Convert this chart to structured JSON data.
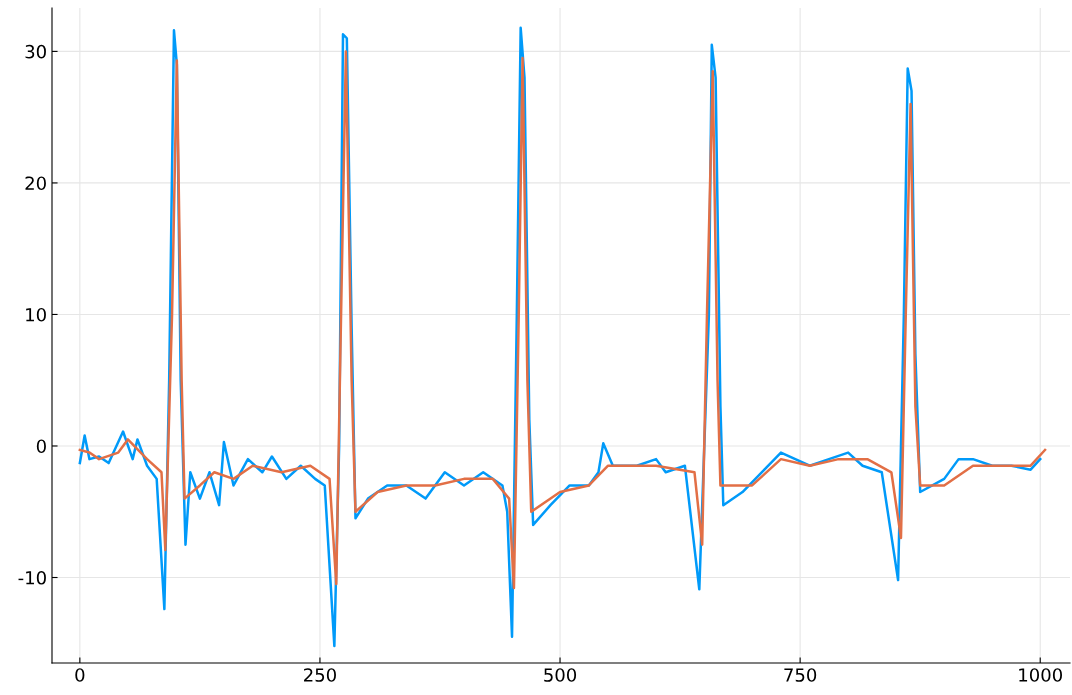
{
  "chart_data": {
    "type": "line",
    "xlim": [
      -29,
      1031
    ],
    "ylim": [
      -16.5,
      33.3
    ],
    "xticks": [
      0,
      250,
      500,
      750,
      1000
    ],
    "yticks": [
      -10,
      0,
      10,
      20,
      30
    ],
    "grid": true,
    "legend": false,
    "marker": "none",
    "line_style": "solid",
    "series": [
      {
        "color": "#009af9",
        "x": [
          0,
          5,
          10,
          20,
          30,
          45,
          55,
          60,
          70,
          80,
          88,
          93,
          98,
          101,
          105,
          110,
          115,
          125,
          135,
          145,
          150,
          160,
          175,
          190,
          200,
          215,
          230,
          245,
          255,
          265,
          270,
          274,
          278,
          283,
          287,
          300,
          320,
          340,
          360,
          380,
          400,
          420,
          440,
          445,
          450,
          455,
          459,
          463,
          468,
          472,
          490,
          510,
          530,
          540,
          545,
          555,
          580,
          600,
          610,
          630,
          645,
          655,
          658,
          662,
          667,
          670,
          690,
          710,
          730,
          760,
          780,
          800,
          815,
          835,
          852,
          858,
          862,
          866,
          870,
          875,
          900,
          915,
          930,
          950,
          970,
          990,
          1000
        ],
        "values": [
          -1.3,
          0.8,
          -1,
          -0.8,
          -1.3,
          1.1,
          -1,
          0.5,
          -1.5,
          -2.5,
          -12.4,
          5,
          31.6,
          29,
          5,
          -7.5,
          -2,
          -4,
          -2,
          -4.5,
          0.3,
          -3,
          -1,
          -2,
          -0.8,
          -2.5,
          -1.5,
          -2.5,
          -3,
          -15.2,
          0,
          31.3,
          31,
          9,
          -5.5,
          -4,
          -3,
          -3,
          -4,
          -2,
          -3,
          -2,
          -3,
          -5,
          -14.5,
          10,
          31.8,
          28,
          2,
          -6,
          -4.5,
          -3,
          -3,
          -2,
          0.2,
          -1.5,
          -1.5,
          -1,
          -2,
          -1.5,
          -10.9,
          10,
          30.5,
          28,
          3,
          -4.5,
          -3.5,
          -2,
          -0.5,
          -1.5,
          -1,
          -0.5,
          -1.5,
          -2,
          -10.2,
          10,
          28.7,
          27,
          7,
          -3.5,
          -2.5,
          -1,
          -1,
          -1.5,
          -1.5,
          -1.8,
          -1
        ]
      },
      {
        "color": "#e26f46",
        "x": [
          0,
          10,
          20,
          40,
          50,
          70,
          85,
          89,
          96,
          101,
          106,
          109,
          125,
          140,
          160,
          180,
          210,
          240,
          260,
          267,
          272,
          277,
          283,
          287,
          310,
          340,
          370,
          400,
          430,
          447,
          452,
          457,
          461,
          466,
          470,
          500,
          530,
          550,
          600,
          640,
          648,
          653,
          659,
          664,
          667,
          700,
          730,
          760,
          790,
          820,
          845,
          855,
          860,
          865,
          870,
          875,
          900,
          930,
          960,
          990,
          1005
        ],
        "values": [
          -0.3,
          -0.5,
          -1,
          -0.5,
          0.5,
          -1,
          -2,
          -7.9,
          10,
          29.3,
          5,
          -4,
          -3,
          -2,
          -2.5,
          -1.5,
          -2,
          -1.5,
          -2.5,
          -10.5,
          10,
          30,
          5,
          -5,
          -3.5,
          -3,
          -3,
          -2.5,
          -2.5,
          -4,
          -10.8,
          10,
          29.5,
          5,
          -5,
          -3.5,
          -3,
          -1.5,
          -1.5,
          -2,
          -7.5,
          10,
          28.5,
          5,
          -3,
          -3,
          -1,
          -1.5,
          -1,
          -1,
          -2,
          -7,
          10,
          26,
          3,
          -3,
          -3,
          -1.5,
          -1.5,
          -1.5,
          -0.3
        ]
      }
    ]
  }
}
